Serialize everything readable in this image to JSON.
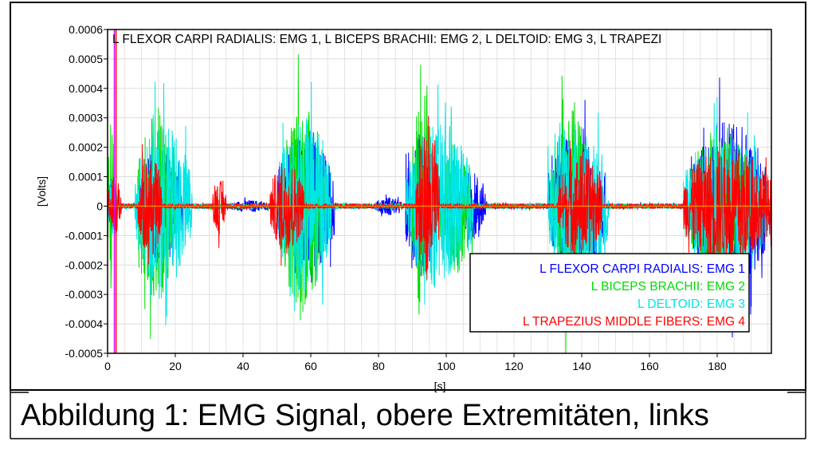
{
  "caption": "Abbildung 1: EMG Signal, obere Extremitäten, links",
  "chart_data": {
    "type": "line",
    "title": "L FLEXOR CARPI RADIALIS: EMG 1, L BICEPS BRACHII: EMG 2, L DELTOID: EMG 3, L TRAPEZI",
    "xlabel": "[s]",
    "ylabel": "[Volts]",
    "xlim": [
      0,
      196
    ],
    "ylim": [
      -0.0005,
      0.0006
    ],
    "x_ticks": [
      0,
      20,
      40,
      60,
      80,
      100,
      120,
      140,
      160,
      180
    ],
    "x_tick_labels": [
      "0",
      "20",
      "40",
      "60",
      "80",
      "100",
      "120",
      "140",
      "160",
      "180"
    ],
    "y_ticks": [
      0.0006,
      0.0005,
      0.0004,
      0.0003,
      0.0002,
      0.0001,
      0,
      -0.0001,
      -0.0002,
      -0.0003,
      -0.0004,
      -0.0005
    ],
    "y_tick_labels": [
      "0.0006",
      "0.0005",
      "0.0004",
      "0.0003",
      "0.0002",
      "0.0001",
      "0",
      "-0.0001",
      "-0.0002",
      "-0.0003",
      "-0.0004",
      "-0.0005"
    ],
    "grid": true,
    "legend_position": "bottom-right",
    "markers": [
      2.0,
      2.5
    ],
    "series": [
      {
        "name": "L FLEXOR CARPI RADIALIS: EMG 1",
        "color": "#0000ff",
        "bursts": [
          [
            0,
            3,
            0.00012
          ],
          [
            9,
            22,
            0.0002
          ],
          [
            36,
            48,
            2e-05
          ],
          [
            50,
            67,
            0.00025
          ],
          [
            79,
            87,
            3e-05
          ],
          [
            88,
            97,
            0.00025
          ],
          [
            103,
            112,
            0.00012
          ],
          [
            130,
            147,
            0.00025
          ],
          [
            172,
            195,
            0.0003
          ]
        ]
      },
      {
        "name": "L BICEPS BRACHII: EMG 2",
        "color": "#00dd00",
        "bursts": [
          [
            0,
            2,
            0.0003
          ],
          [
            9,
            20,
            0.00032
          ],
          [
            51,
            64,
            0.00036
          ],
          [
            90,
            96,
            0.0004
          ],
          [
            98,
            108,
            0.00022
          ],
          [
            131,
            142,
            0.00035
          ],
          [
            172,
            190,
            0.00028
          ]
        ]
      },
      {
        "name": "L DELTOID: EMG 3",
        "color": "#00e5e5",
        "bursts": [
          [
            0,
            3,
            0.0001
          ],
          [
            8,
            25,
            0.00028
          ],
          [
            50,
            66,
            0.0003
          ],
          [
            88,
            108,
            0.00028
          ],
          [
            130,
            148,
            0.00028
          ],
          [
            170,
            195,
            0.00024
          ]
        ]
      },
      {
        "name": "L TRAPEZIUS MIDDLE FIBERS: EMG 4",
        "color": "#ff0000",
        "bursts": [
          [
            0,
            4,
            0.0001
          ],
          [
            9,
            16,
            0.00018
          ],
          [
            31,
            35,
            9e-05
          ],
          [
            48,
            58,
            0.00016
          ],
          [
            91,
            98,
            0.00025
          ],
          [
            133,
            146,
            0.00018
          ],
          [
            170,
            196,
            0.0002
          ]
        ]
      }
    ]
  }
}
